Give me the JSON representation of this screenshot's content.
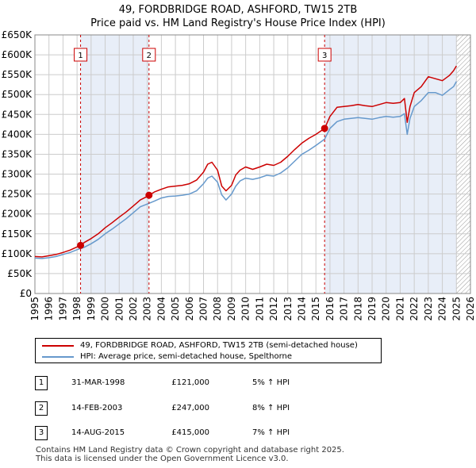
{
  "chart_data": {
    "type": "line",
    "title": "49, FORDBRIDGE ROAD, ASHFORD, TW15 2TB",
    "subtitle": "Price paid vs. HM Land Registry's House Price Index (HPI)",
    "xlim": [
      1995,
      2026
    ],
    "ylim": [
      0,
      650000
    ],
    "yticks": [
      {
        "value": 0,
        "label": "£0"
      },
      {
        "value": 50000,
        "label": "£50K"
      },
      {
        "value": 100000,
        "label": "£100K"
      },
      {
        "value": 150000,
        "label": "£150K"
      },
      {
        "value": 200000,
        "label": "£200K"
      },
      {
        "value": 250000,
        "label": "£250K"
      },
      {
        "value": 300000,
        "label": "£300K"
      },
      {
        "value": 350000,
        "label": "£350K"
      },
      {
        "value": 400000,
        "label": "£400K"
      },
      {
        "value": 450000,
        "label": "£450K"
      },
      {
        "value": 500000,
        "label": "£500K"
      },
      {
        "value": 550000,
        "label": "£550K"
      },
      {
        "value": 600000,
        "label": "£600K"
      },
      {
        "value": 650000,
        "label": "£650K"
      }
    ],
    "xticks": [
      "1995",
      "1996",
      "1997",
      "1998",
      "1999",
      "2000",
      "2001",
      "2002",
      "2003",
      "2004",
      "2005",
      "2006",
      "2007",
      "2008",
      "2009",
      "2010",
      "2011",
      "2012",
      "2013",
      "2014",
      "2015",
      "2016",
      "2017",
      "2018",
      "2019",
      "2020",
      "2021",
      "2022",
      "2023",
      "2024",
      "2025",
      "2026"
    ],
    "shaded_ranges": [
      [
        1998.25,
        2003.12
      ],
      [
        2015.62,
        2025.0
      ]
    ],
    "future_hatch_from": 2025.0,
    "series": [
      {
        "name": "49, FORDBRIDGE ROAD, ASHFORD, TW15 2TB (semi-detached house)",
        "color": "#cc0000",
        "x": [
          1995.0,
          1995.5,
          1996.0,
          1996.5,
          1997.0,
          1997.5,
          1998.0,
          1998.25,
          1998.5,
          1999.0,
          1999.5,
          2000.0,
          2000.5,
          2001.0,
          2001.5,
          2002.0,
          2002.5,
          2003.0,
          2003.12,
          2003.5,
          2004.0,
          2004.5,
          2005.0,
          2005.5,
          2006.0,
          2006.5,
          2007.0,
          2007.3,
          2007.6,
          2008.0,
          2008.3,
          2008.6,
          2009.0,
          2009.3,
          2009.6,
          2010.0,
          2010.5,
          2011.0,
          2011.5,
          2012.0,
          2012.5,
          2013.0,
          2013.5,
          2014.0,
          2014.5,
          2015.0,
          2015.62,
          2016.0,
          2016.5,
          2017.0,
          2017.5,
          2018.0,
          2018.5,
          2019.0,
          2019.5,
          2020.0,
          2020.5,
          2021.0,
          2021.3,
          2021.5,
          2021.7,
          2022.0,
          2022.5,
          2023.0,
          2023.5,
          2024.0,
          2024.5,
          2024.8,
          2025.0
        ],
        "values": [
          93000,
          92000,
          95000,
          98000,
          103000,
          109000,
          117000,
          121000,
          128000,
          138000,
          150000,
          165000,
          178000,
          192000,
          205000,
          220000,
          235000,
          244000,
          247000,
          255000,
          262000,
          268000,
          270000,
          272000,
          276000,
          285000,
          305000,
          325000,
          330000,
          310000,
          270000,
          258000,
          272000,
          298000,
          310000,
          318000,
          312000,
          318000,
          325000,
          322000,
          330000,
          345000,
          362000,
          378000,
          390000,
          400000,
          415000,
          445000,
          468000,
          470000,
          472000,
          475000,
          472000,
          470000,
          475000,
          480000,
          478000,
          480000,
          490000,
          430000,
          470000,
          505000,
          520000,
          545000,
          540000,
          535000,
          548000,
          560000,
          572000
        ]
      },
      {
        "name": "HPI: Average price, semi-detached house, Spelthorne",
        "color": "#6699cc",
        "x": [
          1995.0,
          1995.5,
          1996.0,
          1996.5,
          1997.0,
          1997.5,
          1998.0,
          1998.5,
          1999.0,
          1999.5,
          2000.0,
          2000.5,
          2001.0,
          2001.5,
          2002.0,
          2002.5,
          2003.0,
          2003.5,
          2004.0,
          2004.5,
          2005.0,
          2005.5,
          2006.0,
          2006.5,
          2007.0,
          2007.3,
          2007.6,
          2008.0,
          2008.3,
          2008.6,
          2009.0,
          2009.3,
          2009.6,
          2010.0,
          2010.5,
          2011.0,
          2011.5,
          2012.0,
          2012.5,
          2013.0,
          2013.5,
          2014.0,
          2014.5,
          2015.0,
          2015.62,
          2016.0,
          2016.5,
          2017.0,
          2017.5,
          2018.0,
          2018.5,
          2019.0,
          2019.5,
          2020.0,
          2020.5,
          2021.0,
          2021.3,
          2021.5,
          2021.7,
          2022.0,
          2022.5,
          2023.0,
          2023.5,
          2024.0,
          2024.5,
          2024.8,
          2025.0
        ],
        "values": [
          89000,
          88000,
          90000,
          93000,
          98000,
          103000,
          110000,
          116000,
          125000,
          136000,
          150000,
          162000,
          175000,
          188000,
          203000,
          218000,
          225000,
          232000,
          240000,
          244000,
          245000,
          247000,
          250000,
          258000,
          276000,
          290000,
          295000,
          280000,
          248000,
          235000,
          250000,
          270000,
          283000,
          290000,
          287000,
          291000,
          297000,
          295000,
          303000,
          316000,
          333000,
          350000,
          360000,
          372000,
          388000,
          415000,
          432000,
          438000,
          440000,
          442000,
          440000,
          438000,
          442000,
          445000,
          443000,
          445000,
          452000,
          400000,
          440000,
          470000,
          485000,
          505000,
          505000,
          498000,
          512000,
          520000,
          533000
        ]
      }
    ],
    "markers": [
      {
        "label": "1",
        "x": 1998.25,
        "value": 121000
      },
      {
        "label": "2",
        "x": 2003.12,
        "value": 247000
      },
      {
        "label": "3",
        "x": 2015.62,
        "value": 415000
      }
    ]
  },
  "legend": {
    "items": [
      {
        "label": "49, FORDBRIDGE ROAD, ASHFORD, TW15 2TB (semi-detached house)",
        "color": "#cc0000"
      },
      {
        "label": "HPI: Average price, semi-detached house, Spelthorne",
        "color": "#6699cc"
      }
    ]
  },
  "sales": [
    {
      "num": "1",
      "date": "31-MAR-1998",
      "price": "£121,000",
      "hpi": "5% ↑ HPI"
    },
    {
      "num": "2",
      "date": "14-FEB-2003",
      "price": "£247,000",
      "hpi": "8% ↑ HPI"
    },
    {
      "num": "3",
      "date": "14-AUG-2015",
      "price": "£415,000",
      "hpi": "7% ↑ HPI"
    }
  ],
  "footer": {
    "line1": "Contains HM Land Registry data © Crown copyright and database right 2025.",
    "line2": "This data is licensed under the Open Government Licence v3.0."
  }
}
